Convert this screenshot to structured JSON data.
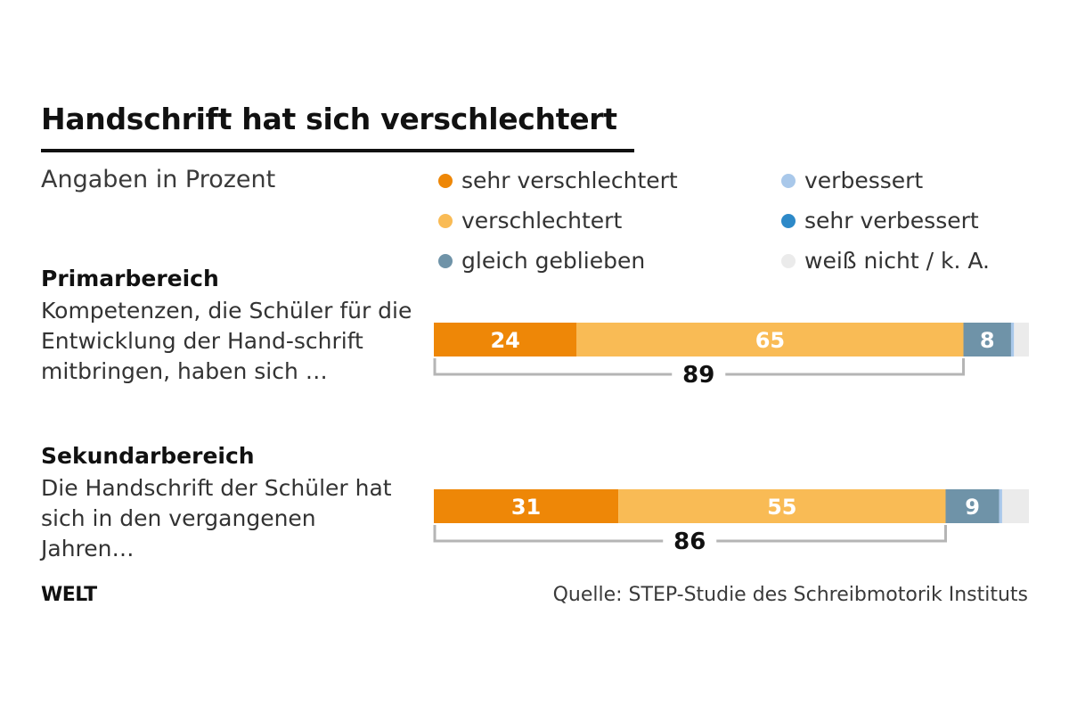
{
  "title": "Handschrift hat sich verschlechtert",
  "subtitle": "Angaben in Prozent",
  "legend": [
    {
      "label": "sehr verschlechtert",
      "color": "#ee8707"
    },
    {
      "label": "verschlechtert",
      "color": "#f9bb55"
    },
    {
      "label": "gleich geblieben",
      "color": "#6f93a8"
    },
    {
      "label": "verbessert",
      "color": "#a9c8ea"
    },
    {
      "label": "sehr verbessert",
      "color": "#2d89c8"
    },
    {
      "label": "weiß nicht / k. A.",
      "color": "#ebebeb"
    }
  ],
  "groups": [
    {
      "heading": "Primarbereich",
      "question": "Kompetenzen, die Schüler für die Entwicklung der Hand-schrift mitbringen, haben sich …"
    },
    {
      "heading": "Sekundarbereich",
      "question": "Die Handschrift der Schüler hat sich in den vergangenen Jahren…"
    }
  ],
  "footer": {
    "logo": "WELT",
    "source": "Quelle: STEP-Studie des Schreibmotorik Instituts"
  },
  "chart_data": {
    "type": "bar",
    "orientation": "horizontal-stacked",
    "categories": [
      "Primarbereich",
      "Sekundarbereich"
    ],
    "series": [
      {
        "name": "sehr verschlechtert",
        "values": [
          24,
          31
        ]
      },
      {
        "name": "verschlechtert",
        "values": [
          65,
          55
        ]
      },
      {
        "name": "gleich geblieben",
        "values": [
          8,
          9
        ]
      },
      {
        "name": "verbessert",
        "values": [
          0.5,
          0.5
        ]
      },
      {
        "name": "sehr verbessert",
        "values": [
          0,
          0
        ]
      },
      {
        "name": "weiß nicht / k. A.",
        "values": [
          2.5,
          4.5
        ]
      }
    ],
    "value_labels_shown_for": [
      "sehr verschlechtert",
      "verschlechtert",
      "gleich geblieben"
    ],
    "bracket_totals": [
      89,
      86
    ],
    "xlim": [
      0,
      100
    ]
  }
}
